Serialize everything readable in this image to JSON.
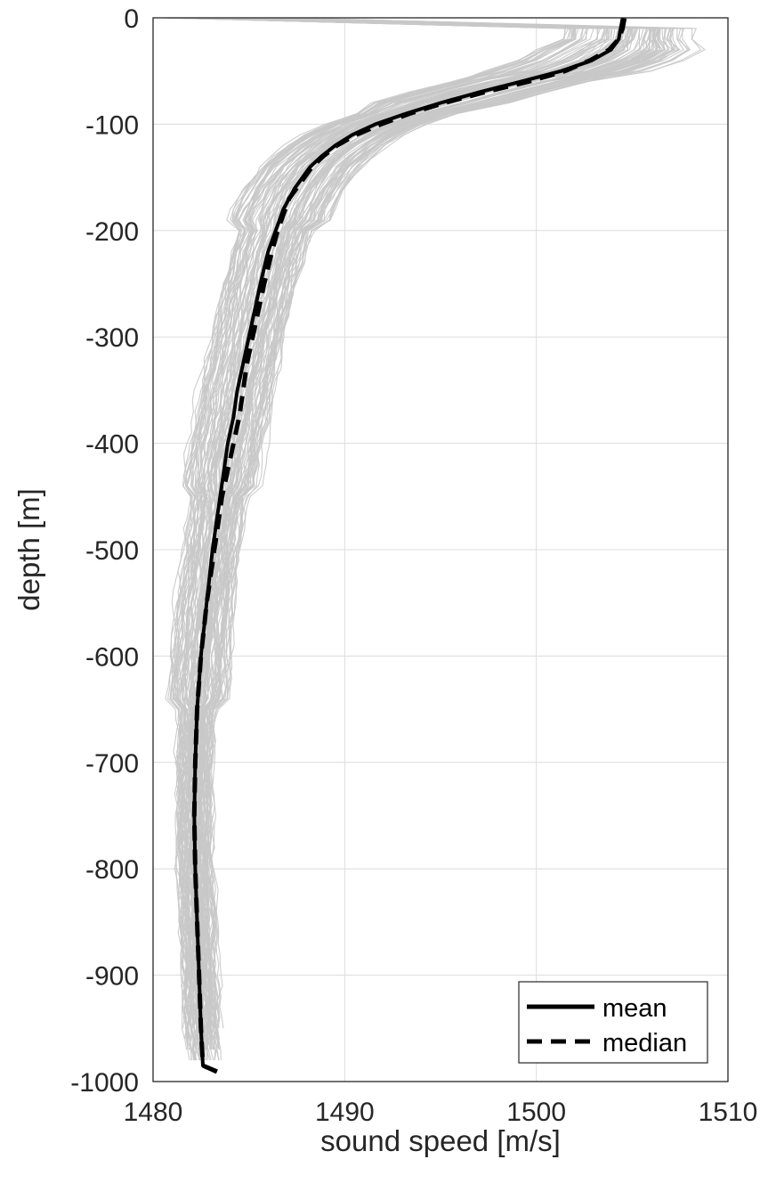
{
  "chart_data": {
    "type": "line",
    "title": "",
    "xlabel": "sound speed [m/s]",
    "ylabel": "depth [m]",
    "xlim": [
      1480,
      1510
    ],
    "ylim": [
      -1000,
      0
    ],
    "xticks": [
      "1480",
      "1490",
      "1500",
      "1510"
    ],
    "yticks": [
      "0",
      "-100",
      "-200",
      "-300",
      "-400",
      "-500",
      "-600",
      "-700",
      "-800",
      "-900",
      "-1000"
    ],
    "grid": true,
    "legend_position": "bottom-right",
    "colors": {
      "individual_profiles": "#c8c8c8",
      "statistics": "#000000",
      "grid": "#dcdcdc"
    },
    "series": [
      {
        "name": "mean",
        "style": "solid",
        "depth": [
          -0.5,
          -10,
          -20,
          -30,
          -40,
          -50,
          -60,
          -70,
          -80,
          -90,
          -100,
          -110,
          -120,
          -130,
          -140,
          -150,
          -160,
          -170,
          -180,
          -200,
          -220,
          -250,
          -275,
          -300,
          -325,
          -350,
          -375,
          -400,
          -425,
          -450,
          -475,
          -500,
          -550,
          -600,
          -650,
          -700,
          -750,
          -800,
          -850,
          -900,
          -950,
          -985,
          -991
        ],
        "speed": [
          1504.5,
          1504.4,
          1504.3,
          1503.9,
          1502.9,
          1501.3,
          1499.2,
          1497.0,
          1495.0,
          1493.2,
          1491.6,
          1490.4,
          1489.5,
          1488.8,
          1488.2,
          1487.8,
          1487.4,
          1487.1,
          1486.8,
          1486.4,
          1486.0,
          1485.6,
          1485.3,
          1485.0,
          1484.7,
          1484.4,
          1484.2,
          1483.9,
          1483.7,
          1483.5,
          1483.3,
          1483.1,
          1482.8,
          1482.5,
          1482.3,
          1482.2,
          1482.15,
          1482.2,
          1482.3,
          1482.4,
          1482.5,
          1482.6,
          1483.3
        ]
      },
      {
        "name": "median",
        "style": "dashed",
        "depth": [
          -0.5,
          -10,
          -20,
          -30,
          -40,
          -50,
          -60,
          -70,
          -80,
          -90,
          -100,
          -110,
          -120,
          -130,
          -140,
          -150,
          -160,
          -170,
          -180,
          -200,
          -220,
          -250,
          -275,
          -300,
          -325,
          -350,
          -375,
          -400,
          -425,
          -450,
          -475,
          -500,
          -550,
          -600,
          -650,
          -700,
          -750,
          -800,
          -850,
          -900,
          -950,
          -985,
          -991
        ],
        "speed": [
          1504.6,
          1504.5,
          1504.3,
          1503.8,
          1502.8,
          1501.5,
          1499.6,
          1497.3,
          1495.2,
          1493.4,
          1491.9,
          1490.6,
          1489.6,
          1488.9,
          1488.3,
          1487.9,
          1487.5,
          1487.1,
          1486.9,
          1486.5,
          1486.2,
          1485.8,
          1485.5,
          1485.2,
          1484.9,
          1484.7,
          1484.5,
          1484.2,
          1483.9,
          1483.6,
          1483.4,
          1483.2,
          1482.8,
          1482.5,
          1482.3,
          1482.2,
          1482.15,
          1482.2,
          1482.3,
          1482.4,
          1482.5,
          1482.6,
          1483.4
        ]
      }
    ],
    "legend": [
      "mean",
      "median"
    ]
  }
}
